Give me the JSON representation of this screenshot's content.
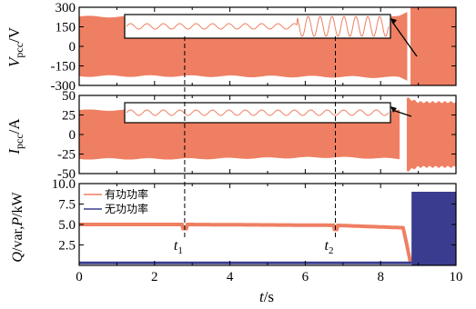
{
  "chart_data": [
    {
      "type": "line",
      "panel": "voltage",
      "ylabel_main": "V",
      "ylabel_sub": "pcc",
      "ylabel_unit": "/V",
      "ylim": [
        -300,
        300
      ],
      "yticks": [
        -300,
        -150,
        0,
        150,
        300
      ],
      "xlim": [
        0,
        10
      ],
      "color": "#ef7f62",
      "series": [
        {
          "x": [
            0,
            2.8,
            6.8,
            8.5,
            8.7
          ],
          "y": [
            220,
            220,
            225,
            230,
            250
          ]
        },
        {
          "x": [
            8.8,
            10
          ],
          "y": [
            300,
            300
          ]
        }
      ],
      "inset_note": "zoomed sinusoid; amplitude grows after t2"
    },
    {
      "type": "line",
      "panel": "current",
      "ylabel_main": "I",
      "ylabel_sub": "pcc",
      "ylabel_unit": "/A",
      "ylim": [
        -50,
        50
      ],
      "yticks": [
        -50,
        -25,
        0,
        25,
        50
      ],
      "xlim": [
        0,
        10
      ],
      "color": "#ef7f62",
      "series": [
        {
          "x": [
            0,
            2.8,
            6.8,
            8.5
          ],
          "y": [
            30,
            30,
            28,
            30
          ]
        },
        {
          "x": [
            8.7,
            9.0,
            10
          ],
          "y": [
            45,
            40,
            40
          ]
        }
      ]
    },
    {
      "type": "line",
      "panel": "power",
      "ylabel_text": "Q/var,P/kW",
      "ylim": [
        0,
        10
      ],
      "yticks": [
        0,
        2.5,
        5.0,
        7.5,
        10.0
      ],
      "ytick_labels": [
        "",
        "2.5",
        "5.0",
        "7.5",
        "10.0"
      ],
      "xlim": [
        0,
        10
      ],
      "xticks": [
        0,
        2,
        4,
        6,
        8,
        10
      ],
      "xlabel_italic": "t",
      "xlabel_unit": "/s",
      "legend_position": "top-left",
      "series": [
        {
          "name": "有功功率",
          "color": "#ef7f62",
          "x": [
            0,
            2.8,
            6.8,
            8.6,
            8.8
          ],
          "y": [
            5.0,
            5.0,
            4.9,
            4.6,
            0.2
          ]
        },
        {
          "name": "无功功率",
          "color": "#3a3d8f",
          "x": [
            0,
            8.8,
            8.85,
            10
          ],
          "y": [
            0.3,
            0.3,
            9.0,
            9.0
          ]
        }
      ],
      "annotations": [
        {
          "text": "t",
          "sub": "1",
          "x": 2.8
        },
        {
          "text": "t",
          "sub": "2",
          "x": 6.8
        }
      ]
    }
  ]
}
